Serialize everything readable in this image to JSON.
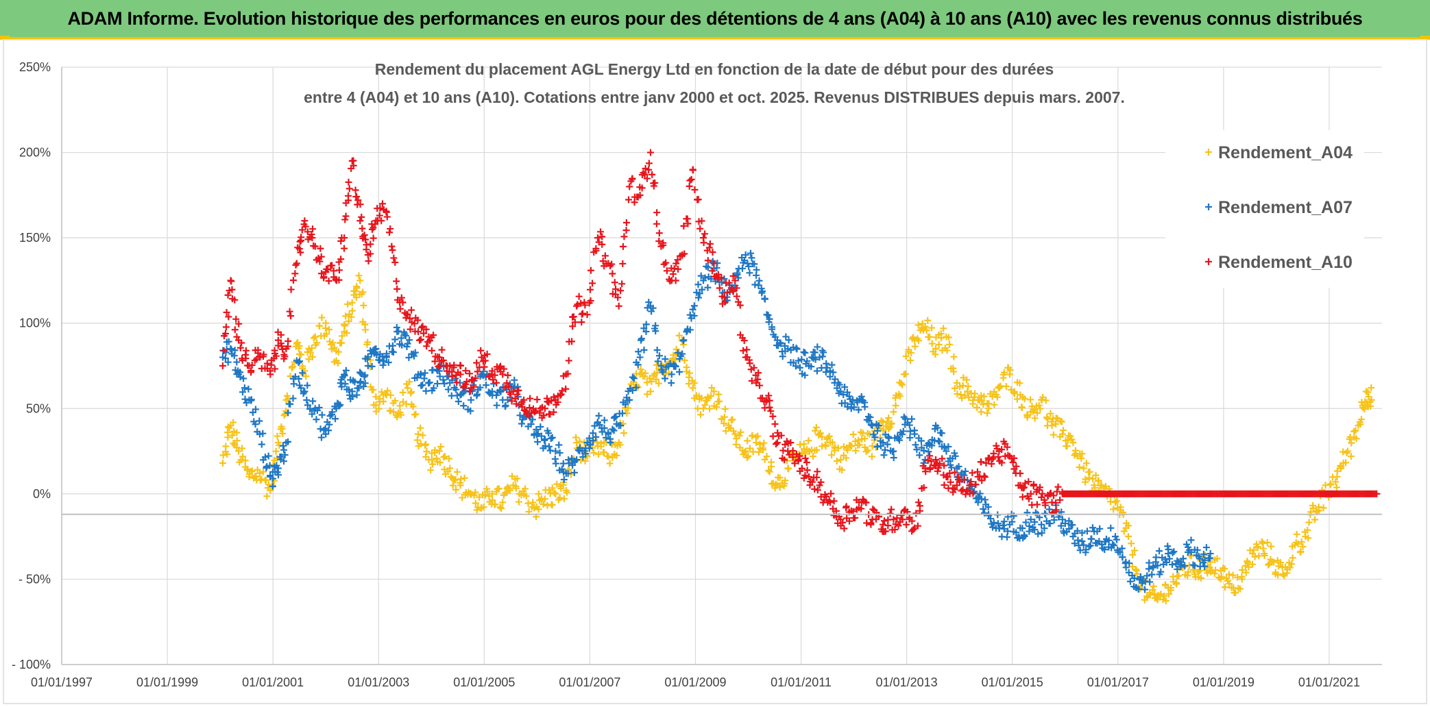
{
  "banner": {
    "title": "ADAM Informe. Evolution historique des performances en euros pour des détentions de 4 ans (A04) à 10 ans (A10) avec les revenus connus distribués"
  },
  "colors": {
    "banner_bg": "#7dc97e",
    "accent": "#f2c400",
    "A04": "#f7c31a",
    "A07": "#1f77c4",
    "A10": "#e8141b"
  },
  "chart_data": {
    "type": "scatter",
    "title_lines": [
      "Rendement du placement AGL Energy Ltd en fonction de la date de début pour des durées",
      "entre 4 (A04) et 10 ans (A10). Cotations entre janv 2000 et oct. 2025. Revenus DISTRIBUES depuis mars. 2007."
    ],
    "y_ticks": [
      "250%",
      "200%",
      "150%",
      "100%",
      "50%",
      "0%",
      "- 50%",
      "- 100%"
    ],
    "x_ticks": [
      "01/01/1997",
      "01/01/1999",
      "01/01/2001",
      "01/01/2003",
      "01/01/2005",
      "01/01/2007",
      "01/01/2009",
      "01/01/2011",
      "01/01/2013",
      "01/01/2015",
      "01/01/2017",
      "01/01/2019",
      "01/01/2021"
    ],
    "xlim": [
      1997.0,
      2022.0
    ],
    "ylim": [
      -100,
      250
    ],
    "legend_position": "top-right",
    "grid": true,
    "series": [
      {
        "name": "Rendement_A04",
        "color": "#f7c31a",
        "points": [
          [
            2000.05,
            18
          ],
          [
            2000.2,
            40
          ],
          [
            2000.35,
            25
          ],
          [
            2000.55,
            10
          ],
          [
            2000.75,
            12
          ],
          [
            2000.95,
            2
          ],
          [
            2001.1,
            30
          ],
          [
            2001.25,
            55
          ],
          [
            2001.45,
            88
          ],
          [
            2001.6,
            72
          ],
          [
            2001.8,
            92
          ],
          [
            2002.0,
            100
          ],
          [
            2002.2,
            78
          ],
          [
            2002.35,
            95
          ],
          [
            2002.5,
            112
          ],
          [
            2002.65,
            125
          ],
          [
            2002.8,
            80
          ],
          [
            2002.95,
            52
          ],
          [
            2003.15,
            58
          ],
          [
            2003.35,
            45
          ],
          [
            2003.55,
            62
          ],
          [
            2003.75,
            35
          ],
          [
            2003.95,
            20
          ],
          [
            2004.15,
            25
          ],
          [
            2004.35,
            15
          ],
          [
            2004.55,
            5
          ],
          [
            2004.75,
            0
          ],
          [
            2004.95,
            -8
          ],
          [
            2005.15,
            0
          ],
          [
            2005.35,
            -5
          ],
          [
            2005.55,
            5
          ],
          [
            2005.75,
            0
          ],
          [
            2005.95,
            -8
          ],
          [
            2006.15,
            -3
          ],
          [
            2006.35,
            0
          ],
          [
            2006.55,
            2
          ],
          [
            2006.75,
            30
          ],
          [
            2006.95,
            22
          ],
          [
            2007.15,
            28
          ],
          [
            2007.35,
            22
          ],
          [
            2007.55,
            30
          ],
          [
            2007.75,
            55
          ],
          [
            2007.95,
            70
          ],
          [
            2008.15,
            60
          ],
          [
            2008.35,
            75
          ],
          [
            2008.55,
            78
          ],
          [
            2008.75,
            90
          ],
          [
            2008.95,
            62
          ],
          [
            2009.15,
            50
          ],
          [
            2009.35,
            60
          ],
          [
            2009.55,
            45
          ],
          [
            2009.75,
            35
          ],
          [
            2009.95,
            25
          ],
          [
            2010.15,
            30
          ],
          [
            2010.35,
            22
          ],
          [
            2010.55,
            5
          ],
          [
            2010.75,
            15
          ],
          [
            2010.95,
            22
          ],
          [
            2011.15,
            25
          ],
          [
            2011.35,
            35
          ],
          [
            2011.55,
            30
          ],
          [
            2011.75,
            20
          ],
          [
            2011.95,
            28
          ],
          [
            2012.15,
            32
          ],
          [
            2012.35,
            28
          ],
          [
            2012.55,
            42
          ],
          [
            2012.75,
            48
          ],
          [
            2012.95,
            70
          ],
          [
            2013.15,
            90
          ],
          [
            2013.35,
            98
          ],
          [
            2013.55,
            85
          ],
          [
            2013.75,
            92
          ],
          [
            2013.95,
            65
          ],
          [
            2014.15,
            60
          ],
          [
            2014.35,
            55
          ],
          [
            2014.55,
            50
          ],
          [
            2014.75,
            62
          ],
          [
            2014.95,
            70
          ],
          [
            2015.15,
            58
          ],
          [
            2015.35,
            48
          ],
          [
            2015.55,
            55
          ],
          [
            2015.75,
            40
          ],
          [
            2015.95,
            35
          ],
          [
            2016.15,
            30
          ],
          [
            2016.35,
            15
          ],
          [
            2016.55,
            5
          ],
          [
            2016.75,
            0
          ],
          [
            2016.95,
            -5
          ],
          [
            2017.15,
            -20
          ],
          [
            2017.35,
            -45
          ],
          [
            2017.55,
            -60
          ],
          [
            2017.75,
            -62
          ],
          [
            2017.95,
            -55
          ],
          [
            2018.15,
            -48
          ],
          [
            2018.35,
            -42
          ],
          [
            2018.55,
            -45
          ],
          [
            2018.75,
            -40
          ],
          [
            2018.95,
            -45
          ],
          [
            2019.15,
            -55
          ],
          [
            2019.35,
            -50
          ],
          [
            2019.55,
            -35
          ],
          [
            2019.75,
            -32
          ],
          [
            2019.95,
            -40
          ],
          [
            2020.15,
            -48
          ],
          [
            2020.35,
            -30
          ],
          [
            2020.55,
            -25
          ],
          [
            2020.75,
            -10
          ],
          [
            2020.95,
            0
          ],
          [
            2021.15,
            10
          ],
          [
            2021.35,
            25
          ],
          [
            2021.55,
            40
          ],
          [
            2021.7,
            60
          ],
          [
            2021.8,
            55
          ]
        ]
      },
      {
        "name": "Rendement_A07",
        "color": "#1f77c4",
        "points": [
          [
            2000.05,
            80
          ],
          [
            2000.2,
            85
          ],
          [
            2000.35,
            70
          ],
          [
            2000.55,
            55
          ],
          [
            2000.75,
            35
          ],
          [
            2000.95,
            10
          ],
          [
            2001.1,
            15
          ],
          [
            2001.25,
            30
          ],
          [
            2001.45,
            78
          ],
          [
            2001.6,
            60
          ],
          [
            2001.8,
            50
          ],
          [
            2002.0,
            35
          ],
          [
            2002.2,
            50
          ],
          [
            2002.35,
            70
          ],
          [
            2002.5,
            60
          ],
          [
            2002.65,
            65
          ],
          [
            2002.8,
            75
          ],
          [
            2002.95,
            85
          ],
          [
            2003.15,
            80
          ],
          [
            2003.35,
            95
          ],
          [
            2003.55,
            88
          ],
          [
            2003.75,
            70
          ],
          [
            2003.95,
            65
          ],
          [
            2004.15,
            72
          ],
          [
            2004.35,
            65
          ],
          [
            2004.55,
            58
          ],
          [
            2004.75,
            55
          ],
          [
            2004.95,
            70
          ],
          [
            2005.15,
            60
          ],
          [
            2005.35,
            55
          ],
          [
            2005.55,
            62
          ],
          [
            2005.75,
            45
          ],
          [
            2005.95,
            35
          ],
          [
            2006.15,
            32
          ],
          [
            2006.35,
            25
          ],
          [
            2006.55,
            12
          ],
          [
            2006.75,
            20
          ],
          [
            2006.95,
            30
          ],
          [
            2007.15,
            42
          ],
          [
            2007.35,
            35
          ],
          [
            2007.55,
            40
          ],
          [
            2007.75,
            55
          ],
          [
            2007.95,
            80
          ],
          [
            2008.15,
            110
          ],
          [
            2008.35,
            75
          ],
          [
            2008.55,
            70
          ],
          [
            2008.75,
            82
          ],
          [
            2008.95,
            108
          ],
          [
            2009.15,
            125
          ],
          [
            2009.35,
            132
          ],
          [
            2009.55,
            118
          ],
          [
            2009.75,
            122
          ],
          [
            2009.95,
            140
          ],
          [
            2010.15,
            128
          ],
          [
            2010.35,
            105
          ],
          [
            2010.55,
            90
          ],
          [
            2010.75,
            85
          ],
          [
            2010.95,
            78
          ],
          [
            2011.15,
            75
          ],
          [
            2011.35,
            80
          ],
          [
            2011.55,
            72
          ],
          [
            2011.75,
            60
          ],
          [
            2011.95,
            50
          ],
          [
            2012.15,
            55
          ],
          [
            2012.35,
            40
          ],
          [
            2012.55,
            30
          ],
          [
            2012.75,
            25
          ],
          [
            2012.95,
            45
          ],
          [
            2013.15,
            35
          ],
          [
            2013.35,
            20
          ],
          [
            2013.55,
            40
          ],
          [
            2013.75,
            25
          ],
          [
            2013.95,
            15
          ],
          [
            2014.15,
            8
          ],
          [
            2014.35,
            -5
          ],
          [
            2014.55,
            -12
          ],
          [
            2014.75,
            -20
          ],
          [
            2014.95,
            -18
          ],
          [
            2015.15,
            -20
          ],
          [
            2015.35,
            -15
          ],
          [
            2015.55,
            -18
          ],
          [
            2015.75,
            -12
          ],
          [
            2015.95,
            -15
          ],
          [
            2016.15,
            -25
          ],
          [
            2016.35,
            -30
          ],
          [
            2016.55,
            -22
          ],
          [
            2016.75,
            -28
          ],
          [
            2016.95,
            -25
          ],
          [
            2017.15,
            -40
          ],
          [
            2017.35,
            -55
          ],
          [
            2017.55,
            -48
          ],
          [
            2017.75,
            -42
          ],
          [
            2017.95,
            -35
          ],
          [
            2018.15,
            -40
          ],
          [
            2018.35,
            -33
          ],
          [
            2018.55,
            -38
          ],
          [
            2018.75,
            -35
          ]
        ]
      },
      {
        "name": "Rendement_A10",
        "color": "#e8141b",
        "points": [
          [
            2000.05,
            75
          ],
          [
            2000.2,
            125
          ],
          [
            2000.35,
            90
          ],
          [
            2000.55,
            75
          ],
          [
            2000.75,
            80
          ],
          [
            2000.95,
            70
          ],
          [
            2001.1,
            90
          ],
          [
            2001.25,
            85
          ],
          [
            2001.45,
            135
          ],
          [
            2001.6,
            160
          ],
          [
            2001.8,
            145
          ],
          [
            2002.0,
            130
          ],
          [
            2002.2,
            125
          ],
          [
            2002.35,
            150
          ],
          [
            2002.5,
            195
          ],
          [
            2002.65,
            160
          ],
          [
            2002.8,
            140
          ],
          [
            2002.95,
            160
          ],
          [
            2003.15,
            165
          ],
          [
            2003.35,
            120
          ],
          [
            2003.55,
            105
          ],
          [
            2003.75,
            95
          ],
          [
            2003.95,
            92
          ],
          [
            2004.15,
            80
          ],
          [
            2004.35,
            75
          ],
          [
            2004.55,
            70
          ],
          [
            2004.75,
            62
          ],
          [
            2004.95,
            80
          ],
          [
            2005.15,
            72
          ],
          [
            2005.35,
            70
          ],
          [
            2005.55,
            60
          ],
          [
            2005.75,
            55
          ],
          [
            2005.95,
            48
          ],
          [
            2006.15,
            50
          ],
          [
            2006.35,
            55
          ],
          [
            2006.55,
            70
          ],
          [
            2006.75,
            110
          ],
          [
            2006.95,
            105
          ],
          [
            2007.15,
            150
          ],
          [
            2007.35,
            135
          ],
          [
            2007.55,
            110
          ],
          [
            2007.75,
            180
          ],
          [
            2007.95,
            175
          ],
          [
            2008.15,
            200
          ],
          [
            2008.35,
            145
          ],
          [
            2008.55,
            125
          ],
          [
            2008.75,
            140
          ],
          [
            2008.95,
            190
          ],
          [
            2009.15,
            150
          ],
          [
            2009.35,
            135
          ],
          [
            2009.55,
            115
          ],
          [
            2009.75,
            125
          ],
          [
            2009.95,
            80
          ],
          [
            2010.15,
            65
          ],
          [
            2010.35,
            55
          ],
          [
            2010.55,
            30
          ],
          [
            2010.75,
            25
          ],
          [
            2010.95,
            20
          ],
          [
            2011.15,
            10
          ],
          [
            2011.35,
            5
          ],
          [
            2011.55,
            -5
          ],
          [
            2011.75,
            -15
          ],
          [
            2011.95,
            -10
          ],
          [
            2012.15,
            -5
          ],
          [
            2012.35,
            -15
          ],
          [
            2012.55,
            -18
          ],
          [
            2012.75,
            -15
          ],
          [
            2012.95,
            -10
          ],
          [
            2013.15,
            -20
          ],
          [
            2013.35,
            15
          ],
          [
            2013.55,
            20
          ],
          [
            2013.75,
            10
          ],
          [
            2013.95,
            5
          ],
          [
            2014.15,
            2
          ],
          [
            2014.35,
            10
          ],
          [
            2014.55,
            20
          ],
          [
            2014.75,
            25
          ],
          [
            2014.95,
            22
          ],
          [
            2015.15,
            5
          ],
          [
            2015.35,
            0
          ],
          [
            2015.55,
            -2
          ],
          [
            2015.75,
            -5
          ],
          [
            2015.95,
            0
          ],
          [
            2016.5,
            0
          ],
          [
            2017.5,
            0
          ],
          [
            2018.5,
            0
          ],
          [
            2019.5,
            0
          ],
          [
            2020.5,
            0
          ],
          [
            2021.5,
            0
          ],
          [
            2021.9,
            0
          ]
        ]
      }
    ]
  }
}
